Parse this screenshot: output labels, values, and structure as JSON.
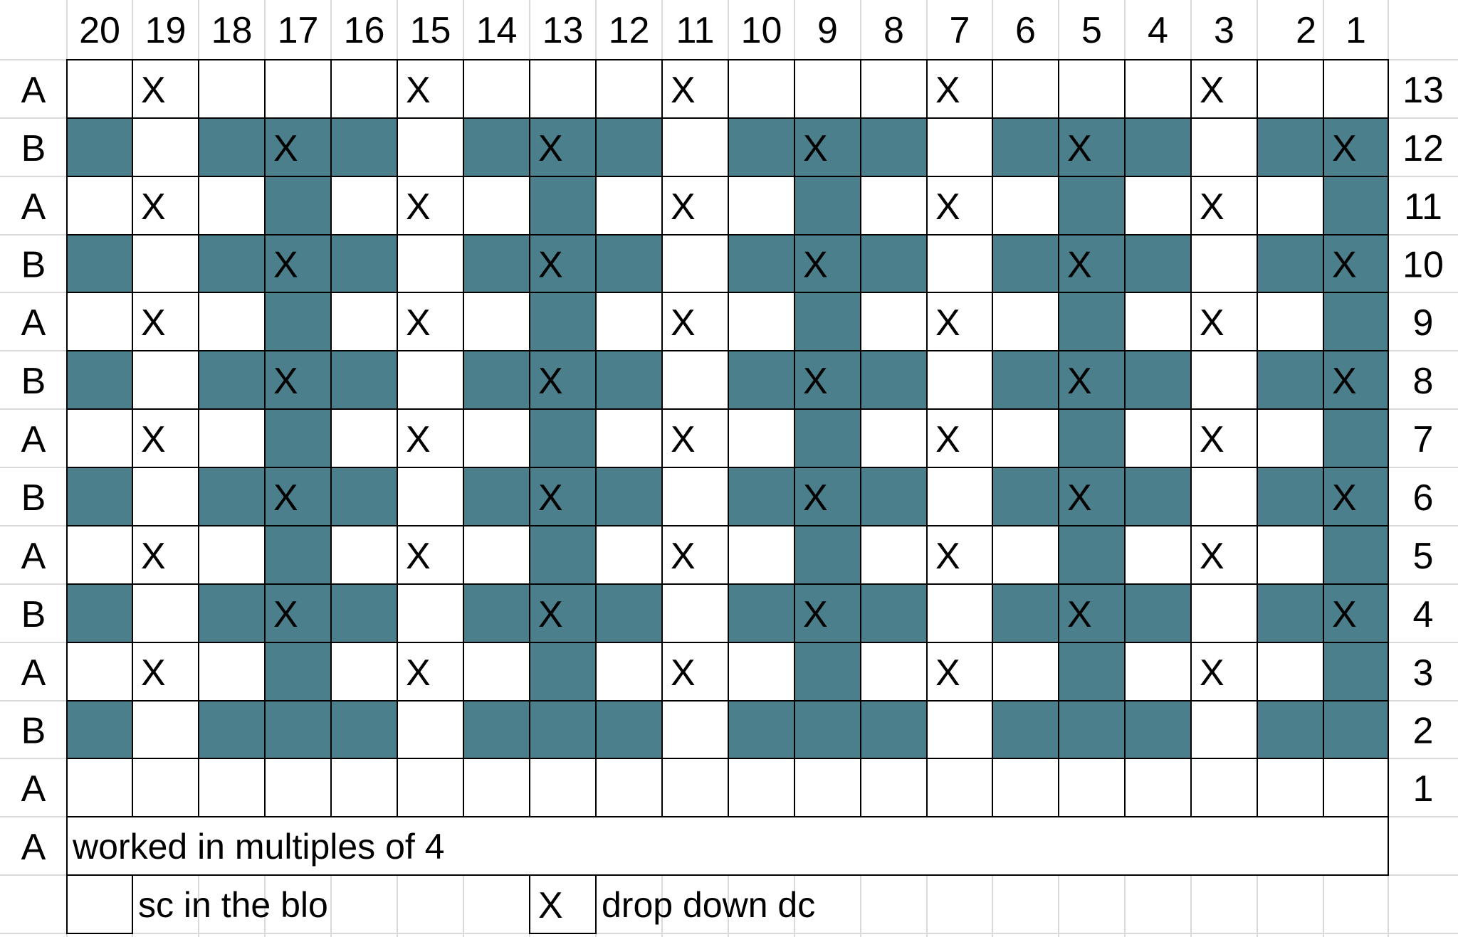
{
  "colors": {
    "stripe_fill": "#4A7F8B",
    "cell_background": "#FFFFFF",
    "light_grid": "#DADADA",
    "dark_grid": "#000000",
    "text": "#000000"
  },
  "chart": {
    "column_labels": [
      "20",
      "19",
      "18",
      "17",
      "16",
      "15",
      "14",
      "13",
      "12",
      "11",
      "10",
      "9",
      "8",
      "7",
      "6",
      "5",
      "4",
      "3",
      "2",
      "1"
    ],
    "rows": [
      {
        "side": "A",
        "number": "13",
        "cells": "0X000X000X000X000X00"
      },
      {
        "side": "B",
        "number": "12",
        "cells": "101Y101Y101Y101Y101Y"
      },
      {
        "side": "A",
        "number": "11",
        "cells": "0X010X010X010X010X01"
      },
      {
        "side": "B",
        "number": "10",
        "cells": "101Y101Y101Y101Y101Y"
      },
      {
        "side": "A",
        "number": "9",
        "cells": "0X010X010X010X010X01"
      },
      {
        "side": "B",
        "number": "8",
        "cells": "101Y101Y101Y101Y101Y"
      },
      {
        "side": "A",
        "number": "7",
        "cells": "0X010X010X010X010X01"
      },
      {
        "side": "B",
        "number": "6",
        "cells": "101Y101Y101Y101Y101Y"
      },
      {
        "side": "A",
        "number": "5",
        "cells": "0X010X010X010X010X01"
      },
      {
        "side": "B",
        "number": "4",
        "cells": "101Y101Y101Y101Y101Y"
      },
      {
        "side": "A",
        "number": "3",
        "cells": "0X010X010X010X010X01"
      },
      {
        "side": "B",
        "number": "2",
        "cells": "10111011101110111011"
      },
      {
        "side": "A",
        "number": "1",
        "cells": "00000000000000000000"
      }
    ],
    "mark_glyph": "X"
  },
  "note": {
    "side": "A",
    "text": "worked in multiples of 4"
  },
  "legend": {
    "items": [
      {
        "symbol": "",
        "text": "sc in the blo"
      },
      {
        "symbol": "X",
        "text": "drop down dc"
      }
    ]
  }
}
